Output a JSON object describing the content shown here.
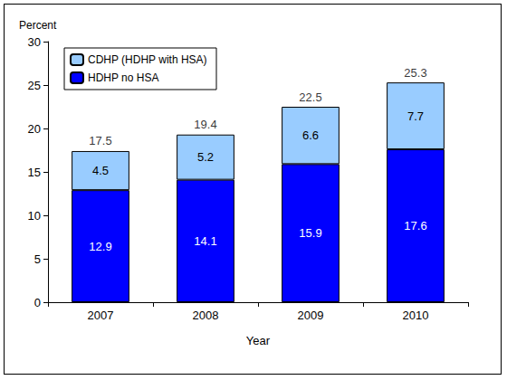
{
  "chart_data": {
    "type": "bar",
    "stacked": true,
    "data_labels": true,
    "grid": false,
    "legend": "upper left",
    "categories": [
      "2007",
      "2008",
      "2009",
      "2010"
    ],
    "x_label": "Year",
    "y_label": "Percent",
    "series": [
      {
        "name": "HDHP no HSA",
        "color": "#0000ff",
        "values": [
          12.9,
          14.1,
          15.9,
          17.6
        ]
      },
      {
        "name": "CDHP (HDHP with HSA)",
        "color": "#99ccff",
        "values": [
          4.5,
          5.2,
          6.6,
          7.7
        ]
      }
    ],
    "totals": [
      17.5,
      19.4,
      22.5,
      25.3
    ],
    "ylim": [
      0,
      30
    ],
    "yticks": [
      0,
      5,
      10,
      15,
      20,
      25,
      30
    ]
  }
}
